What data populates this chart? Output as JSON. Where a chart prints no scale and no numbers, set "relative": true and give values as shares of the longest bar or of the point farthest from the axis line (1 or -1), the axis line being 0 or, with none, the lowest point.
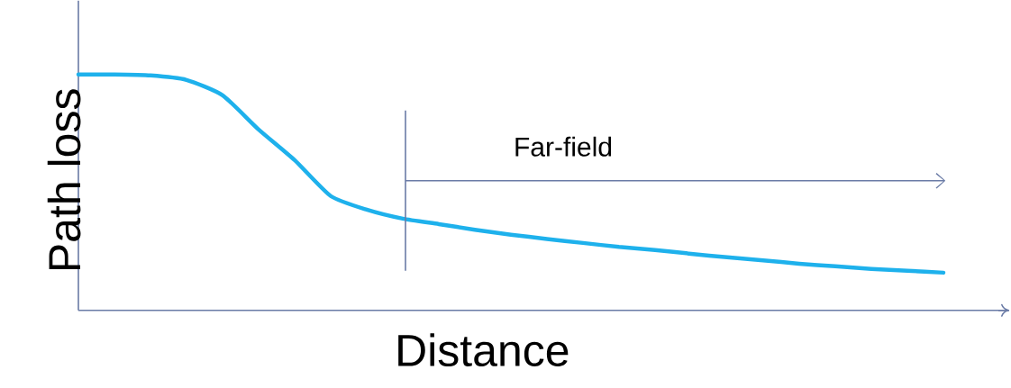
{
  "chart_data": {
    "type": "line",
    "xlabel": "Distance",
    "ylabel": "Path loss",
    "annotations": [
      "Far-field"
    ],
    "categories": [
      null,
      null,
      null,
      null,
      null,
      null,
      null,
      null,
      null,
      null,
      null,
      null,
      null,
      null,
      null,
      null,
      null,
      null,
      null,
      null,
      null,
      null,
      null,
      null,
      null
    ],
    "series": [
      {
        "color": "#1eb1ec",
        "values": [
          1.0,
          1.0,
          0.996,
          0.977,
          0.912,
          0.767,
          0.637,
          0.485,
          0.427,
          0.389,
          0.366,
          0.342,
          0.321,
          0.303,
          0.286,
          0.269,
          0.256,
          0.24,
          0.225,
          0.212,
          0.198,
          0.187,
          0.176,
          0.168,
          0.16
        ]
      }
    ],
    "relative": true
  }
}
